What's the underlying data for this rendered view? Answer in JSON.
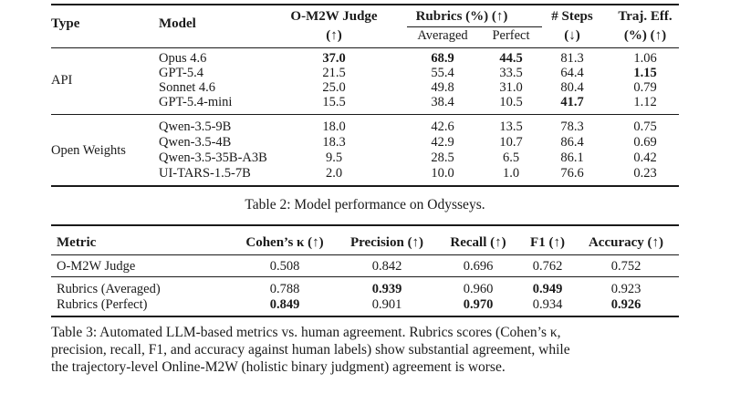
{
  "table2": {
    "headers": {
      "type": "Type",
      "model": "Model",
      "judge": "O-M2W Judge",
      "judge_dir": "(↑)",
      "rubrics": "Rubrics (%) (↑)",
      "averaged": "Averaged",
      "perfect": "Perfect",
      "steps": "# Steps",
      "steps_dir": "(↓)",
      "traj": "Traj. Eff.",
      "traj_unit": "(%) (↑)"
    },
    "groups": [
      {
        "type": "API",
        "rows": [
          {
            "model": "Opus 4.6",
            "judge": "37.0",
            "averaged": "68.9",
            "perfect": "44.5",
            "steps": "81.3",
            "traj": "1.06"
          },
          {
            "model": "GPT-5.4",
            "judge": "21.5",
            "averaged": "55.4",
            "perfect": "33.5",
            "steps": "64.4",
            "traj": "1.15"
          },
          {
            "model": "Sonnet 4.6",
            "judge": "25.0",
            "averaged": "49.8",
            "perfect": "31.0",
            "steps": "80.4",
            "traj": "0.79"
          },
          {
            "model": "GPT-5.4-mini",
            "judge": "15.5",
            "averaged": "38.4",
            "perfect": "10.5",
            "steps": "41.7",
            "traj": "1.12"
          }
        ]
      },
      {
        "type": "Open Weights",
        "rows": [
          {
            "model": "Qwen-3.5-9B",
            "judge": "18.0",
            "averaged": "42.6",
            "perfect": "13.5",
            "steps": "78.3",
            "traj": "0.75"
          },
          {
            "model": "Qwen-3.5-4B",
            "judge": "18.3",
            "averaged": "42.9",
            "perfect": "10.7",
            "steps": "86.4",
            "traj": "0.69"
          },
          {
            "model": "Qwen-3.5-35B-A3B",
            "judge": "9.5",
            "averaged": "28.5",
            "perfect": "6.5",
            "steps": "86.1",
            "traj": "0.42"
          },
          {
            "model": "UI-TARS-1.5-7B",
            "judge": "2.0",
            "averaged": "10.0",
            "perfect": "1.0",
            "steps": "76.6",
            "traj": "0.23"
          }
        ]
      }
    ],
    "caption": "Table 2: Model performance on Odysseys."
  },
  "table3": {
    "headers": {
      "metric": "Metric",
      "kappa": "Cohen’s κ (↑)",
      "precision": "Precision (↑)",
      "recall": "Recall (↑)",
      "f1": "F1 (↑)",
      "accuracy": "Accuracy (↑)"
    },
    "rows": [
      {
        "metric": "O-M2W Judge",
        "kappa": "0.508",
        "precision": "0.842",
        "recall": "0.696",
        "f1": "0.762",
        "accuracy": "0.752"
      },
      {
        "metric": "Rubrics (Averaged)",
        "kappa": "0.788",
        "precision": "0.939",
        "recall": "0.960",
        "f1": "0.949",
        "accuracy": "0.923"
      },
      {
        "metric": "Rubrics (Perfect)",
        "kappa": "0.849",
        "precision": "0.901",
        "recall": "0.970",
        "f1": "0.934",
        "accuracy": "0.926"
      }
    ],
    "caption_lines": [
      "Table 3: Automated LLM-based metrics vs. human agreement. Rubrics scores (Cohen’s κ,",
      "precision, recall, F1, and accuracy against human labels) show substantial agreement, while",
      "the trajectory-level Online-M2W (holistic binary judgment) agreement is worse."
    ]
  }
}
